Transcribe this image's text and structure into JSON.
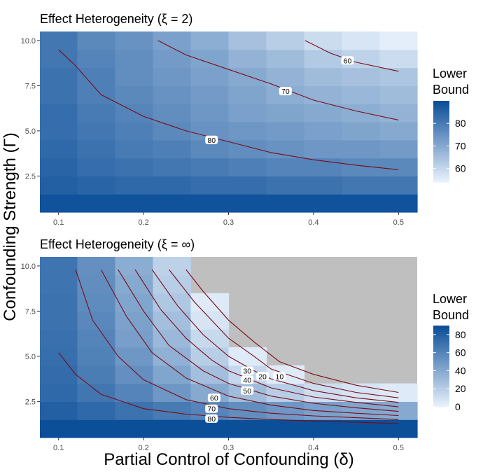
{
  "figure": {
    "xlabel": "Partial Control of Confounding (δ)",
    "ylabel": "Confounding Strength (Γ)"
  },
  "colors": {
    "low": "#eaf3fd",
    "high": "#0a4d98",
    "contour": "#7a0b17",
    "na": "#bfbfbf"
  },
  "chart_data": [
    {
      "type": "heatmap",
      "title": "Effect Heterogeneity (ξ = 2)",
      "x_centers": [
        0.1,
        0.144,
        0.189,
        0.233,
        0.278,
        0.322,
        0.367,
        0.411,
        0.456,
        0.5
      ],
      "y_centers": [
        1,
        2,
        3,
        4,
        5,
        6,
        7,
        8,
        9,
        10
      ],
      "xlim": [
        0.078,
        0.522
      ],
      "ylim": [
        0.5,
        10.5
      ],
      "x_ticks": [
        0.1,
        0.2,
        0.3,
        0.4,
        0.5
      ],
      "x_tick_labels": [
        "0.1",
        "0.2",
        "0.3",
        "0.4",
        "0.5"
      ],
      "y_ticks": [
        2.5,
        5.0,
        7.5,
        10.0
      ],
      "y_tick_labels": [
        "2.5",
        "5.0",
        "7.5",
        "10.0"
      ],
      "values": [
        [
          89,
          89,
          89,
          89,
          89,
          89,
          89,
          89,
          89,
          89
        ],
        [
          86,
          85,
          84,
          84,
          83,
          83,
          82,
          82,
          81,
          81
        ],
        [
          85,
          83,
          82,
          81,
          80,
          79,
          78,
          78,
          77,
          77
        ],
        [
          84,
          82,
          80,
          79,
          77,
          76,
          75,
          74,
          74,
          73
        ],
        [
          83,
          81,
          79,
          77,
          75,
          74,
          73,
          72,
          71,
          70
        ],
        [
          83,
          80,
          78,
          76,
          74,
          72,
          71,
          70,
          69,
          68
        ],
        [
          82,
          79,
          77,
          75,
          73,
          71,
          69,
          68,
          67,
          66
        ],
        [
          82,
          79,
          76,
          74,
          72,
          70,
          68,
          66,
          65,
          64
        ],
        [
          81,
          78,
          76,
          73,
          71,
          68,
          66,
          63,
          61,
          59
        ],
        [
          81,
          77,
          75,
          72,
          69,
          65,
          62,
          59,
          57,
          55
        ]
      ],
      "legend": {
        "title": [
          "Lower",
          "Bound"
        ],
        "min": 54,
        "max": 90,
        "ticks": [
          60,
          70,
          80
        ],
        "tick_labels": [
          "60",
          "70",
          "80"
        ]
      },
      "contours": [
        {
          "label": "80",
          "label_at": [
            0.28,
            4.5
          ],
          "points": [
            [
              0.1,
              9.5
            ],
            [
              0.12,
              8.6
            ],
            [
              0.15,
              7.0
            ],
            [
              0.2,
              5.8
            ],
            [
              0.25,
              5.0
            ],
            [
              0.3,
              4.4
            ],
            [
              0.35,
              3.8
            ],
            [
              0.4,
              3.4
            ],
            [
              0.45,
              3.1
            ],
            [
              0.5,
              2.85
            ]
          ]
        },
        {
          "label": "70",
          "label_at": [
            0.367,
            7.2
          ],
          "points": [
            [
              0.217,
              10.0
            ],
            [
              0.25,
              9.2
            ],
            [
              0.3,
              8.4
            ],
            [
              0.35,
              7.6
            ],
            [
              0.4,
              6.7
            ],
            [
              0.45,
              6.1
            ],
            [
              0.5,
              5.6
            ]
          ]
        },
        {
          "label": "60",
          "label_at": [
            0.44,
            8.9
          ],
          "points": [
            [
              0.39,
              10.0
            ],
            [
              0.42,
              9.3
            ],
            [
              0.45,
              8.8
            ],
            [
              0.5,
              8.3
            ]
          ]
        }
      ]
    },
    {
      "type": "heatmap",
      "title": "Effect Heterogeneity (ξ = ∞)",
      "x_centers": [
        0.1,
        0.144,
        0.189,
        0.233,
        0.278,
        0.322,
        0.367,
        0.411,
        0.456,
        0.5
      ],
      "y_centers": [
        1,
        2,
        3,
        4,
        5,
        6,
        7,
        8,
        9,
        10
      ],
      "xlim": [
        0.078,
        0.522
      ],
      "ylim": [
        0.5,
        10.5
      ],
      "x_ticks": [
        0.1,
        0.2,
        0.3,
        0.4,
        0.5
      ],
      "x_tick_labels": [
        "0.1",
        "0.2",
        "0.3",
        "0.4",
        "0.5"
      ],
      "y_ticks": [
        2.5,
        5.0,
        7.5,
        10.0
      ],
      "y_tick_labels": [
        "2.5",
        "5.0",
        "7.5",
        "10.0"
      ],
      "values": [
        [
          89,
          89,
          89,
          89,
          89,
          89,
          89,
          89,
          89,
          89
        ],
        [
          80,
          75,
          70,
          65,
          60,
          55,
          50,
          45,
          42,
          40
        ],
        [
          75,
          68,
          60,
          50,
          40,
          30,
          20,
          12,
          8,
          5
        ],
        [
          73,
          64,
          54,
          42,
          28,
          15,
          5,
          null,
          null,
          null
        ],
        [
          72,
          62,
          50,
          36,
          20,
          5,
          null,
          null,
          null,
          null
        ],
        [
          71,
          60,
          46,
          32,
          14,
          null,
          null,
          null,
          null,
          null
        ],
        [
          70,
          58,
          44,
          28,
          8,
          null,
          null,
          null,
          null,
          null
        ],
        [
          70,
          56,
          42,
          24,
          5,
          null,
          null,
          null,
          null,
          null
        ],
        [
          69,
          55,
          40,
          20,
          null,
          null,
          null,
          null,
          null,
          null
        ],
        [
          69,
          54,
          38,
          18,
          null,
          null,
          null,
          null,
          null,
          null
        ]
      ],
      "legend": {
        "title": [
          "Lower",
          "Bound"
        ],
        "min": 0,
        "max": 90,
        "ticks": [
          0,
          20,
          40,
          60,
          80
        ],
        "tick_labels": [
          "0",
          "20",
          "40",
          "60",
          "80"
        ]
      },
      "contours": [
        {
          "label": "80",
          "label_at": [
            0.28,
            1.55
          ],
          "points": [
            [
              0.1,
              5.2
            ],
            [
              0.12,
              4.0
            ],
            [
              0.15,
              2.9
            ],
            [
              0.2,
              2.1
            ],
            [
              0.25,
              1.8
            ],
            [
              0.3,
              1.62
            ],
            [
              0.35,
              1.5
            ],
            [
              0.4,
              1.42
            ],
            [
              0.45,
              1.35
            ],
            [
              0.5,
              1.28
            ]
          ]
        },
        {
          "label": "70",
          "label_at": [
            0.28,
            2.1
          ],
          "points": [
            [
              0.12,
              9.8
            ],
            [
              0.14,
              7.0
            ],
            [
              0.17,
              5.0
            ],
            [
              0.2,
              3.7
            ],
            [
              0.25,
              2.6
            ],
            [
              0.3,
              2.1
            ],
            [
              0.35,
              1.85
            ],
            [
              0.4,
              1.7
            ],
            [
              0.45,
              1.6
            ],
            [
              0.5,
              1.5
            ]
          ]
        },
        {
          "label": "60",
          "label_at": [
            0.283,
            2.7
          ],
          "points": [
            [
              0.15,
              9.8
            ],
            [
              0.18,
              7.2
            ],
            [
              0.21,
              5.2
            ],
            [
              0.25,
              3.8
            ],
            [
              0.3,
              2.8
            ],
            [
              0.35,
              2.3
            ],
            [
              0.4,
              2.0
            ],
            [
              0.45,
              1.85
            ],
            [
              0.5,
              1.72
            ]
          ]
        },
        {
          "label": "50",
          "label_at": [
            0.322,
            3.1
          ],
          "points": [
            [
              0.17,
              9.8
            ],
            [
              0.2,
              7.5
            ],
            [
              0.23,
              5.6
            ],
            [
              0.27,
              4.2
            ],
            [
              0.3,
              3.5
            ],
            [
              0.35,
              2.8
            ],
            [
              0.4,
              2.4
            ],
            [
              0.45,
              2.15
            ],
            [
              0.5,
              1.95
            ]
          ]
        },
        {
          "label": "40",
          "label_at": [
            0.322,
            3.7
          ],
          "points": [
            [
              0.19,
              9.8
            ],
            [
              0.22,
              7.6
            ],
            [
              0.25,
              6.0
            ],
            [
              0.28,
              4.8
            ],
            [
              0.3,
              4.2
            ],
            [
              0.35,
              3.25
            ],
            [
              0.4,
              2.75
            ],
            [
              0.45,
              2.45
            ],
            [
              0.5,
              2.2
            ]
          ]
        },
        {
          "label": "30",
          "label_at": [
            0.322,
            4.2
          ],
          "points": [
            [
              0.21,
              9.8
            ],
            [
              0.24,
              7.8
            ],
            [
              0.27,
              6.2
            ],
            [
              0.3,
              5.0
            ],
            [
              0.33,
              4.2
            ],
            [
              0.35,
              3.75
            ],
            [
              0.4,
              3.1
            ],
            [
              0.45,
              2.7
            ],
            [
              0.5,
              2.45
            ]
          ]
        },
        {
          "label": "20",
          "label_at": [
            0.34,
            3.9
          ],
          "points": [
            [
              0.23,
              9.8
            ],
            [
              0.26,
              8.0
            ],
            [
              0.28,
              7.0
            ],
            [
              0.3,
              6.0
            ],
            [
              0.33,
              5.0
            ],
            [
              0.35,
              4.3
            ],
            [
              0.4,
              3.5
            ],
            [
              0.45,
              3.0
            ],
            [
              0.5,
              2.7
            ]
          ]
        },
        {
          "label": "10",
          "label_at": [
            0.36,
            3.9
          ],
          "points": [
            [
              0.25,
              9.8
            ],
            [
              0.27,
              8.6
            ],
            [
              0.3,
              7.0
            ],
            [
              0.33,
              5.8
            ],
            [
              0.36,
              4.7
            ],
            [
              0.4,
              4.0
            ],
            [
              0.45,
              3.4
            ],
            [
              0.5,
              3.0
            ]
          ]
        }
      ]
    }
  ]
}
